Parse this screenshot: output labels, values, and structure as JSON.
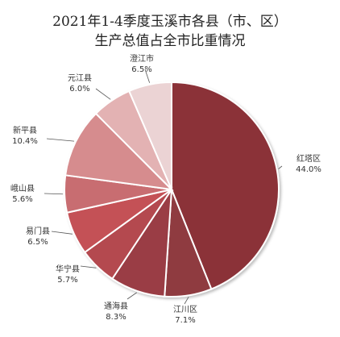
{
  "chart_data": {
    "type": "pie",
    "title_line1": "2021年1-4季度玉溪市各县（市、区）",
    "title_line2": "生产总值占全市比重情况",
    "slices": [
      {
        "label": "红塔区",
        "value": 44.0,
        "text": "44.0%",
        "color": "#8b3038"
      },
      {
        "label": "江川区",
        "value": 7.1,
        "text": "7.1%",
        "color": "#8f3a40"
      },
      {
        "label": "通海县",
        "value": 8.3,
        "text": "8.3%",
        "color": "#9a3d44"
      },
      {
        "label": "华宁县",
        "value": 5.7,
        "text": "5.7%",
        "color": "#b4494f"
      },
      {
        "label": "易门县",
        "value": 6.5,
        "text": "6.5%",
        "color": "#c45157"
      },
      {
        "label": "峨山县",
        "value": 5.6,
        "text": "5.6%",
        "color": "#c86d71"
      },
      {
        "label": "新平县",
        "value": 10.4,
        "text": "10.4%",
        "color": "#d68c8e"
      },
      {
        "label": "元江县",
        "value": 6.0,
        "text": "6.0%",
        "color": "#e3b2b3"
      },
      {
        "label": "澄江市",
        "value": 6.5,
        "text": "6.5%",
        "color": "#ebd3d4"
      }
    ]
  }
}
